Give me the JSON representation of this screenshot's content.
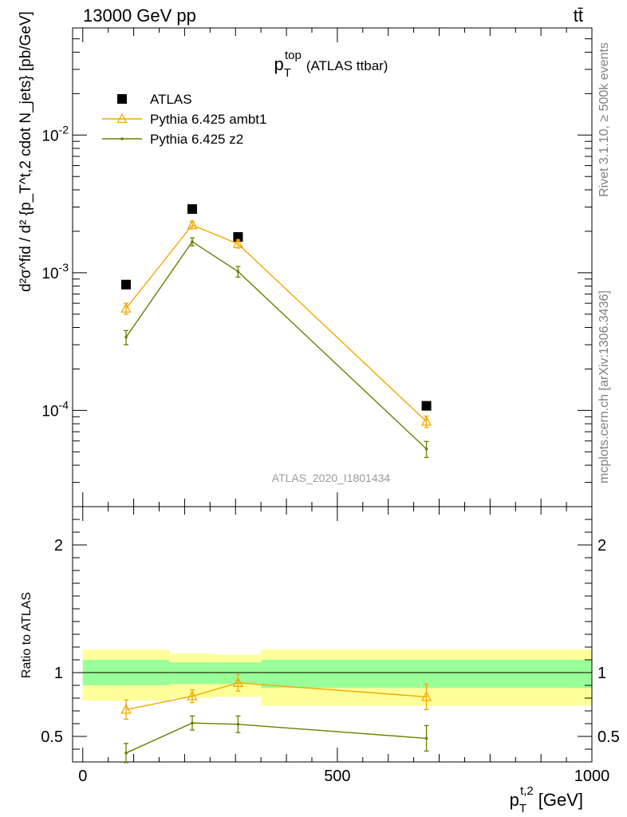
{
  "header": {
    "left": "13000 GeV pp",
    "right": "tt̄"
  },
  "side_labels": {
    "rivet": "Rivet 3.1.10, ≥ 500k events",
    "mcplots": "mcplots.cern.ch [arXiv:1306.3436]"
  },
  "chart_data": [
    {
      "type": "scatter",
      "title": {
        "main": "p",
        "sup": "top",
        "sub": "T",
        "suffix": "(ATLAS ttbar)"
      },
      "ylabel": "d²σ^fid / d² {p_T^t,2 cdot N_jets} [pb/GeV]",
      "yscale": "log",
      "ylim": [
        2e-05,
        0.06
      ],
      "xlim": [
        -20,
        1000
      ],
      "y_tick_labels": [
        "10^-2",
        "10^-3",
        "10^-4"
      ],
      "watermark": "ATLAS_2020_I1801434",
      "legend": {
        "placement": "top-left"
      },
      "series": [
        {
          "name": "ATLAS",
          "color": "#000000",
          "marker": "square",
          "x": [
            85,
            215,
            305,
            675
          ],
          "y": [
            0.00082,
            0.0029,
            0.00182,
            0.000108
          ]
        },
        {
          "name": "Pythia 6.425 ambt1",
          "color": "#f2a800",
          "marker": "triangle",
          "x": [
            85,
            215,
            305,
            675
          ],
          "y": [
            0.00055,
            0.00222,
            0.00162,
            8.3e-05
          ],
          "err_lo": [
            5e-05,
            0.00013,
            0.00011,
            8e-06
          ],
          "err_hi": [
            5e-05,
            0.00013,
            0.00011,
            8e-06
          ]
        },
        {
          "name": "Pythia 6.425 z2",
          "color": "#6b7f00",
          "marker": "dot",
          "x": [
            85,
            215,
            305,
            675
          ],
          "y": [
            0.00034,
            0.00168,
            0.00102,
            5.25e-05
          ],
          "err_lo": [
            4e-05,
            0.00011,
            9e-05,
            7e-06
          ],
          "err_hi": [
            4e-05,
            0.00011,
            9e-05,
            7e-06
          ]
        }
      ]
    },
    {
      "type": "line",
      "ylabel": "Ratio to ATLAS",
      "xlabel": {
        "main": "p",
        "sup": "t,2",
        "sub": "T",
        "suffix": "[GeV]"
      },
      "xlim": [
        -20,
        1000
      ],
      "ylim": [
        0.3,
        2.3
      ],
      "x_ticks": [
        0,
        500,
        1000
      ],
      "x_tick_labels": [
        "0",
        "500",
        "1000"
      ],
      "y_ticks": [
        0.5,
        1,
        2
      ],
      "y_tick_labels": [
        "0.5",
        "1",
        "2"
      ],
      "bands": [
        {
          "x0": 0,
          "x1": 170,
          "inner": [
            0.9,
            1.1
          ],
          "outer": [
            0.78,
            1.18
          ]
        },
        {
          "x0": 170,
          "x1": 260,
          "inner": [
            0.91,
            1.08
          ],
          "outer": [
            0.8,
            1.15
          ]
        },
        {
          "x0": 260,
          "x1": 350,
          "inner": [
            0.91,
            1.08
          ],
          "outer": [
            0.81,
            1.14
          ]
        },
        {
          "x0": 350,
          "x1": 1000,
          "inner": [
            0.88,
            1.1
          ],
          "outer": [
            0.74,
            1.18
          ]
        }
      ],
      "band_colors": {
        "inner": "#99ff99",
        "outer": "#ffff99"
      },
      "series": [
        {
          "name": "Pythia 6.425 ambt1",
          "color": "#f2a800",
          "marker": "triangle",
          "x": [
            85,
            215,
            305,
            675
          ],
          "y": [
            0.71,
            0.815,
            0.92,
            0.81
          ],
          "err": [
            0.075,
            0.05,
            0.065,
            0.1
          ]
        },
        {
          "name": "Pythia 6.425 z2",
          "color": "#6b7f00",
          "marker": "dot",
          "x": [
            85,
            215,
            305,
            675
          ],
          "y": [
            0.37,
            0.605,
            0.595,
            0.485
          ],
          "err": [
            0.075,
            0.055,
            0.065,
            0.1
          ]
        }
      ]
    }
  ]
}
